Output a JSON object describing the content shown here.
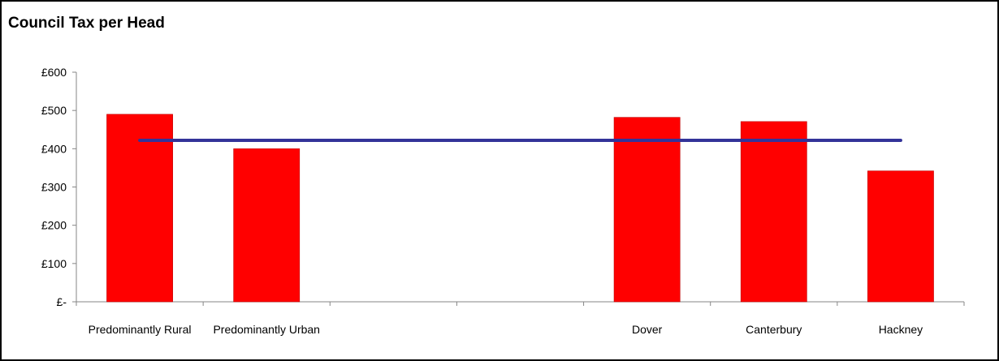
{
  "chart_data": {
    "type": "bar",
    "title": "Council Tax per Head",
    "xlabel": "",
    "ylabel": "",
    "categories": [
      "Predominantly Rural",
      "Predominantly Urban",
      "",
      "",
      "Dover",
      "Canterbury",
      "Hackney"
    ],
    "series": [
      {
        "type": "bar",
        "values": [
          490,
          400,
          null,
          null,
          482,
          471,
          342
        ],
        "color": "#ff0000"
      },
      {
        "type": "line",
        "values": [
          422,
          422,
          422,
          422,
          422,
          422,
          422
        ],
        "color": "#333399"
      }
    ],
    "ylim": [
      0,
      600
    ],
    "yticks": [
      0,
      100,
      200,
      300,
      400,
      500,
      600
    ],
    "ytick_labels": [
      "£-",
      "£100",
      "£200",
      "£300",
      "£400",
      "£500",
      "£600"
    ],
    "grid": false,
    "legend": "none"
  }
}
